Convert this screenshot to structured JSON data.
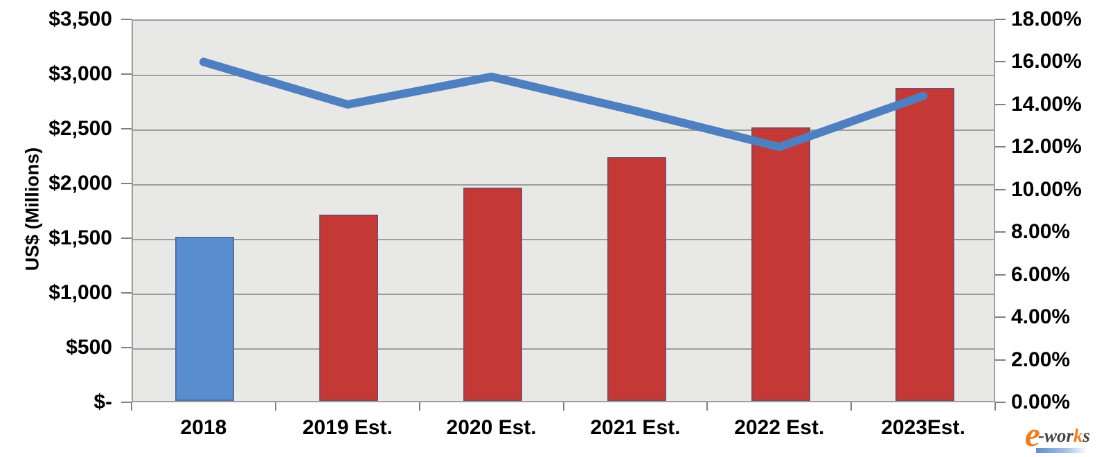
{
  "chart_data": {
    "type": "bar",
    "subtype": "combo-bar-line-dual-axis",
    "categories": [
      "2018",
      "2019 Est.",
      "2020 Est.",
      "2021 Est.",
      "2022 Est.",
      "2023Est."
    ],
    "series": [
      {
        "name": "bar-series-usd-millions",
        "type": "bar",
        "axis": "left",
        "values": [
          1500,
          1700,
          1950,
          2230,
          2500,
          2860
        ],
        "point_colors": [
          "#588ED0",
          "#C43836",
          "#C43836",
          "#C43836",
          "#C43836",
          "#C43836"
        ]
      },
      {
        "name": "line-series-percent",
        "type": "line",
        "axis": "right",
        "values": [
          16.0,
          14.0,
          15.3,
          13.7,
          12.0,
          14.4
        ],
        "color": "#4E80C1"
      }
    ],
    "title": "",
    "xlabel": "",
    "ylabel": "US$ (Millions)",
    "left_axis": {
      "min": 0,
      "max": 3500,
      "step": 500,
      "tick_labels": [
        "$3,500",
        "$3,000",
        "$2,500",
        "$2,000",
        "$1,500",
        "$1,000",
        "$500",
        "$-"
      ]
    },
    "right_axis": {
      "min": 0,
      "max": 18,
      "step": 2,
      "tick_labels": [
        "18.00%",
        "16.00%",
        "14.00%",
        "12.00%",
        "10.00%",
        "8.00%",
        "6.00%",
        "4.00%",
        "2.00%",
        "0.00%"
      ]
    },
    "grid": "horizontal",
    "legend": "none",
    "plot_background": "#E8E8E6",
    "gridline_color": "#9E9E9E"
  },
  "watermark": {
    "e": "e",
    "wor": "-wor",
    "k": "k",
    "s": "s"
  }
}
